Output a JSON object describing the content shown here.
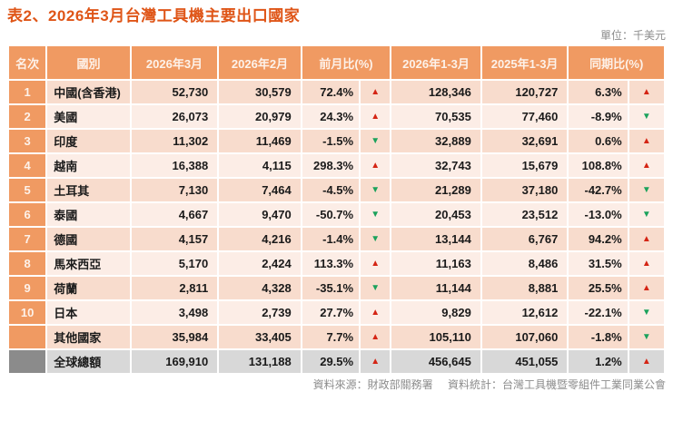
{
  "title": "表2、2026年3月台灣工具機主要出口國家",
  "unit_label": "單位：千美元",
  "footer": {
    "source": "資料來源：財政部關務署",
    "stats": "資料統計：台灣工具機暨零組件工業同業公會"
  },
  "icons": {
    "up": "▲",
    "down": "▼",
    "up_name": "up-triangle-icon",
    "down_name": "down-triangle-icon"
  },
  "colors": {
    "title": "#df5517",
    "header_bg": "#f09a62",
    "header_text": "#fdf2ea",
    "row_odd": "#f8dccd",
    "row_even": "#fcede6",
    "total_row_bg": "#d8d8d8",
    "total_rank_bg": "#8b8b8b",
    "up_arrow": "#d42414",
    "down_arrow": "#1ba25c",
    "muted_text": "#8c8c8c"
  },
  "table": {
    "headers": [
      "名次",
      "國別",
      "2026年3月",
      "2026年2月",
      "前月比(%)",
      "2026年1-3月",
      "2025年1-3月",
      "同期比(%)"
    ],
    "rows": [
      {
        "rank": "1",
        "country": "中國(含香港)",
        "m3": "52,730",
        "m2": "30,579",
        "mom": "72.4%",
        "mom_dir": "up",
        "q2026": "128,346",
        "q2025": "120,727",
        "yoy": "6.3%",
        "yoy_dir": "up",
        "is_total": false
      },
      {
        "rank": "2",
        "country": "美國",
        "m3": "26,073",
        "m2": "20,979",
        "mom": "24.3%",
        "mom_dir": "up",
        "q2026": "70,535",
        "q2025": "77,460",
        "yoy": "-8.9%",
        "yoy_dir": "down",
        "is_total": false
      },
      {
        "rank": "3",
        "country": "印度",
        "m3": "11,302",
        "m2": "11,469",
        "mom": "-1.5%",
        "mom_dir": "down",
        "q2026": "32,889",
        "q2025": "32,691",
        "yoy": "0.6%",
        "yoy_dir": "up",
        "is_total": false
      },
      {
        "rank": "4",
        "country": "越南",
        "m3": "16,388",
        "m2": "4,115",
        "mom": "298.3%",
        "mom_dir": "up",
        "q2026": "32,743",
        "q2025": "15,679",
        "yoy": "108.8%",
        "yoy_dir": "up",
        "is_total": false
      },
      {
        "rank": "5",
        "country": "土耳其",
        "m3": "7,130",
        "m2": "7,464",
        "mom": "-4.5%",
        "mom_dir": "down",
        "q2026": "21,289",
        "q2025": "37,180",
        "yoy": "-42.7%",
        "yoy_dir": "down",
        "is_total": false
      },
      {
        "rank": "6",
        "country": "泰國",
        "m3": "4,667",
        "m2": "9,470",
        "mom": "-50.7%",
        "mom_dir": "down",
        "q2026": "20,453",
        "q2025": "23,512",
        "yoy": "-13.0%",
        "yoy_dir": "down",
        "is_total": false
      },
      {
        "rank": "7",
        "country": "德國",
        "m3": "4,157",
        "m2": "4,216",
        "mom": "-1.4%",
        "mom_dir": "down",
        "q2026": "13,144",
        "q2025": "6,767",
        "yoy": "94.2%",
        "yoy_dir": "up",
        "is_total": false
      },
      {
        "rank": "8",
        "country": "馬來西亞",
        "m3": "5,170",
        "m2": "2,424",
        "mom": "113.3%",
        "mom_dir": "up",
        "q2026": "11,163",
        "q2025": "8,486",
        "yoy": "31.5%",
        "yoy_dir": "up",
        "is_total": false
      },
      {
        "rank": "9",
        "country": "荷蘭",
        "m3": "2,811",
        "m2": "4,328",
        "mom": "-35.1%",
        "mom_dir": "down",
        "q2026": "11,144",
        "q2025": "8,881",
        "yoy": "25.5%",
        "yoy_dir": "up",
        "is_total": false
      },
      {
        "rank": "10",
        "country": "日本",
        "m3": "3,498",
        "m2": "2,739",
        "mom": "27.7%",
        "mom_dir": "up",
        "q2026": "9,829",
        "q2025": "12,612",
        "yoy": "-22.1%",
        "yoy_dir": "down",
        "is_total": false
      },
      {
        "rank": "",
        "country": "其他國家",
        "m3": "35,984",
        "m2": "33,405",
        "mom": "7.7%",
        "mom_dir": "up",
        "q2026": "105,110",
        "q2025": "107,060",
        "yoy": "-1.8%",
        "yoy_dir": "down",
        "is_total": false
      },
      {
        "rank": "",
        "country": "全球總額",
        "m3": "169,910",
        "m2": "131,188",
        "mom": "29.5%",
        "mom_dir": "up",
        "q2026": "456,645",
        "q2025": "451,055",
        "yoy": "1.2%",
        "yoy_dir": "up",
        "is_total": true
      }
    ]
  }
}
